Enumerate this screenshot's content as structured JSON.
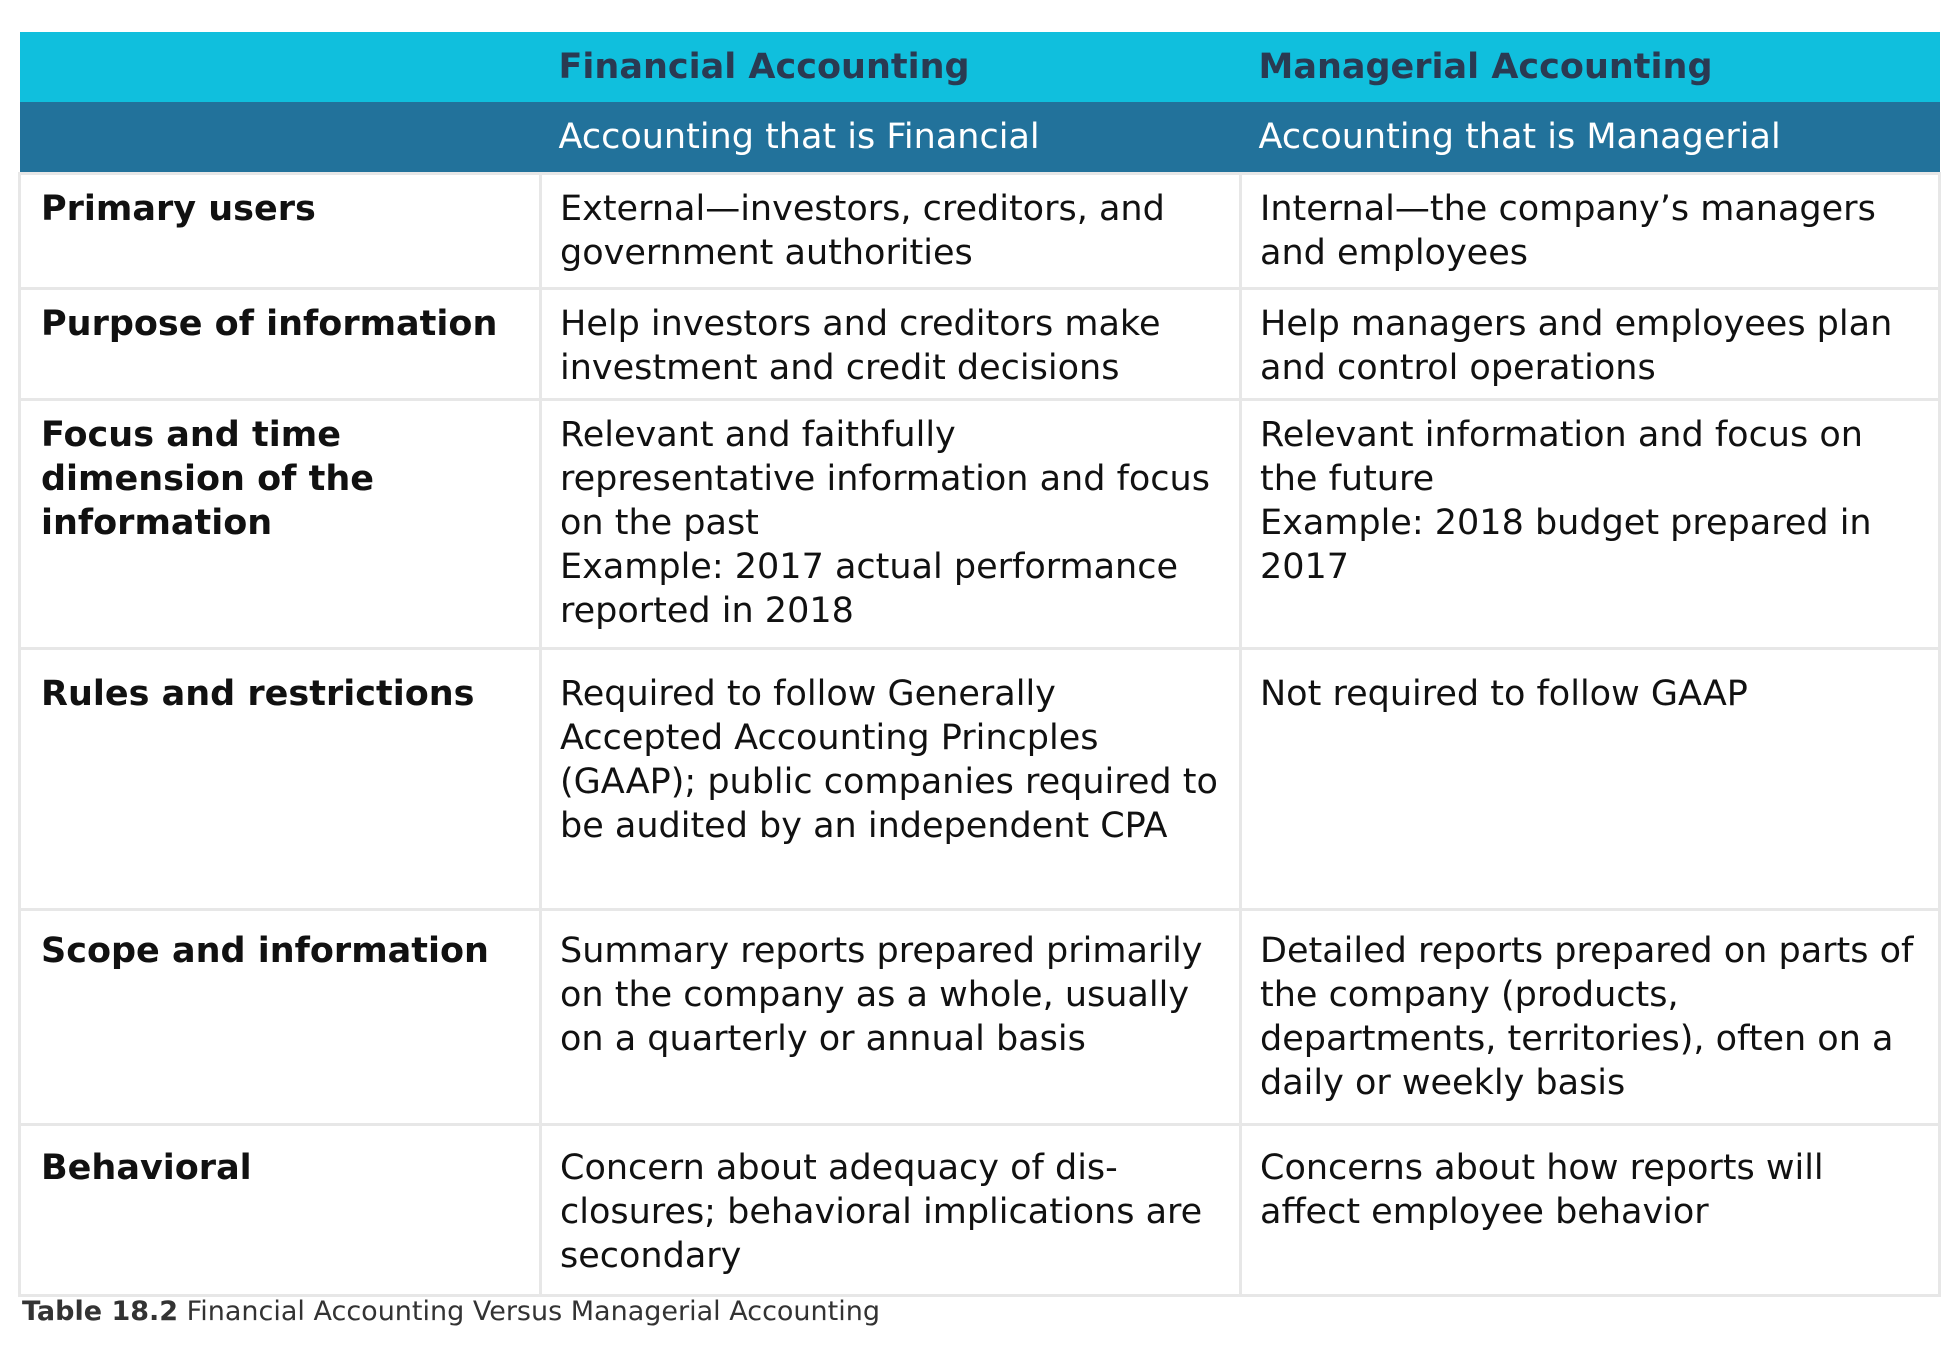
{
  "table": {
    "header": {
      "col1": "Financial Accounting",
      "col2": "Managerial Accounting"
    },
    "subheader": {
      "col1": "Accounting that is Financial",
      "col2": "Accounting that is Managerial"
    },
    "rows": [
      {
        "label": "Primary users",
        "financial": [
          "External—investors, creditors, and government authorities"
        ],
        "managerial": [
          "Internal—the company’s managers and employees"
        ]
      },
      {
        "label": "Purpose of information",
        "financial": [
          "Help investors and creditors make investment and credit decisions"
        ],
        "managerial": [
          "Help managers and employees plan and control operations"
        ]
      },
      {
        "label": "Focus and time dimension of the information",
        "financial": [
          "Relevant and faithfully representative information and focus on the past",
          "Example: 2017 actual performance reported in 2018"
        ],
        "managerial": [
          "Relevant information and focus on the future",
          "Example: 2018 budget prepared in 2017"
        ]
      },
      {
        "label": "Rules and restrictions",
        "financial": [
          "Required to follow Generally Accepted Accounting Princples (GAAP); public companies required to be audited by an independent CPA"
        ],
        "managerial": [
          "Not required to follow GAAP"
        ]
      },
      {
        "label": "Scope and information",
        "financial": [
          "Summary reports prepared primarily on the company as a whole, usually on a quarterly or annual basis"
        ],
        "managerial": [
          "Detailed reports prepared on parts of the company (products, departments, territories), often on a daily or weekly basis"
        ]
      },
      {
        "label": "Behavioral",
        "financial": [
          "Concern about adequacy of dis- closures; behavioral implications are secondary"
        ],
        "managerial": [
          "Concerns about how reports will affect employee behavior"
        ]
      }
    ]
  },
  "caption": {
    "number": "Table 18.2",
    "text": "Financial Accounting Versus Managerial Accounting"
  },
  "colors": {
    "header_bg": "#10bfdd",
    "header_text": "#2a3a52",
    "subheader_bg": "#22729b",
    "subheader_text": "#ffffff",
    "border": "#e7e7e7"
  }
}
